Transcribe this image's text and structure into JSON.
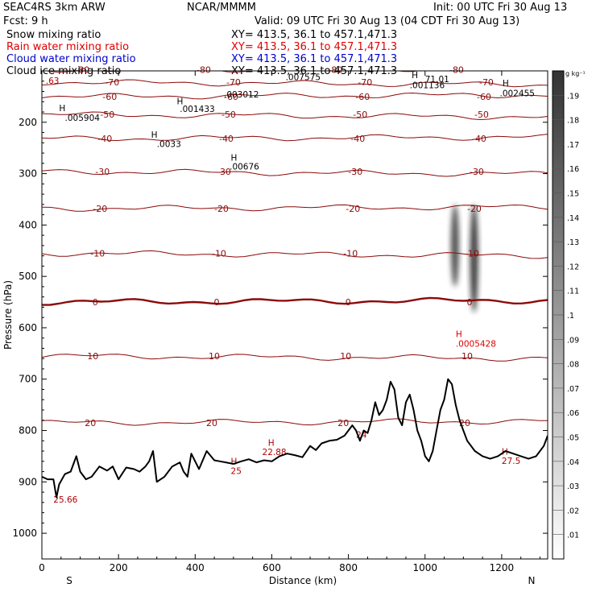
{
  "header": {
    "model": "SEAC4RS  3km ARW",
    "org": "NCAR/MMMM",
    "init": "Init: 00 UTC Fri 30 Aug 13",
    "fcst": "Fcst:    9 h",
    "valid": "Valid: 09 UTC Fri 30 Aug 13 (04 CDT Fri 30 Aug 13)"
  },
  "fields": [
    {
      "name": "Snow mixing ratio",
      "xy": "XY= 413.5, 36.1 to 457.1,471.3",
      "color": "#000000"
    },
    {
      "name": "Rain water mixing ratio",
      "xy": "XY= 413.5, 36.1 to 457.1,471.3",
      "color": "#e00000"
    },
    {
      "name": "Cloud water mixing ratio",
      "xy": "XY= 413.5, 36.1 to 457.1,471.3",
      "color": "#0000cc"
    },
    {
      "name": "Cloud ice mixing ratio",
      "xy": "XY= 413.5, 36.1 to 457.1,471.3",
      "color": "#000000"
    }
  ],
  "chart_data": {
    "type": "heatmap",
    "xlabel": "Distance (km)",
    "ylabel": "Pressure (hPa)",
    "xlim": [
      0,
      1320
    ],
    "ylim": [
      1050,
      100
    ],
    "x_ticks": [
      0,
      200,
      400,
      600,
      800,
      1000,
      1200
    ],
    "y_ticks": [
      200,
      300,
      400,
      500,
      600,
      700,
      800,
      900,
      1000
    ],
    "end_labels": {
      "left": "S",
      "right": "N"
    },
    "colorbar": {
      "unit": "g kg⁻¹",
      "ticks": [
        ".01",
        ".02",
        ".03",
        ".04",
        ".05",
        ".06",
        ".07",
        ".08",
        ".09",
        ".1",
        ".11",
        ".12",
        ".13",
        ".14",
        ".15",
        ".16",
        ".17",
        ".18",
        ".19"
      ]
    },
    "temperature_isotherms": [
      {
        "label": "-80",
        "p": 98
      },
      {
        "label": "-70",
        "p": 122
      },
      {
        "label": "-60",
        "p": 150
      },
      {
        "label": "-50",
        "p": 185
      },
      {
        "label": "-40",
        "p": 232
      },
      {
        "label": "-30",
        "p": 296
      },
      {
        "label": "-20",
        "p": 368
      },
      {
        "label": "-10",
        "p": 455
      },
      {
        "label": "0",
        "p": 550
      },
      {
        "label": "10",
        "p": 655
      },
      {
        "label": "20",
        "p": 785
      }
    ],
    "extrema_labels": [
      {
        "label": ".63",
        "x": 10,
        "p": 125,
        "color": "#b00000"
      },
      {
        "label": "H",
        "x": 45,
        "p": 178,
        "color": "#000000"
      },
      {
        "label": ".005904",
        "x": 60,
        "p": 197,
        "color": "#000000"
      },
      {
        "label": "H",
        "x": 285,
        "p": 230,
        "color": "#000000"
      },
      {
        "label": ".0033",
        "x": 300,
        "p": 248,
        "color": "#000000"
      },
      {
        "label": "H",
        "x": 352,
        "p": 165,
        "color": "#000000"
      },
      {
        "label": ".001433",
        "x": 360,
        "p": 180,
        "color": "#000000"
      },
      {
        "label": ".003012",
        "x": 475,
        "p": 152,
        "color": "#000000"
      },
      {
        "label": "H",
        "x": 493,
        "p": 275,
        "color": "#000000"
      },
      {
        "label": ".00676",
        "x": 490,
        "p": 292,
        "color": "#000000"
      },
      {
        "label": ".007575",
        "x": 636,
        "p": 118,
        "color": "#000000"
      },
      {
        "label": "H",
        "x": 965,
        "p": 114,
        "color": "#000000"
      },
      {
        "label": ".001136",
        "x": 960,
        "p": 134,
        "color": "#000000"
      },
      {
        "label": "71.01",
        "x": 1000,
        "p": 122,
        "color": "#000000"
      },
      {
        "label": "H",
        "x": 1202,
        "p": 130,
        "color": "#000000"
      },
      {
        "label": ".002455",
        "x": 1195,
        "p": 149,
        "color": "#000000"
      },
      {
        "label": "H",
        "x": 1080,
        "p": 618,
        "color": "#e00000"
      },
      {
        "label": ".0005428",
        "x": 1080,
        "p": 637,
        "color": "#e00000"
      },
      {
        "label": "H",
        "x": 590,
        "p": 830,
        "color": "#b00000"
      },
      {
        "label": "22.88",
        "x": 575,
        "p": 848,
        "color": "#b00000"
      },
      {
        "label": "H",
        "x": 493,
        "p": 866,
        "color": "#b00000"
      },
      {
        "label": "25",
        "x": 493,
        "p": 885,
        "color": "#b00000"
      },
      {
        "label": "24",
        "x": 820,
        "p": 814,
        "color": "#b00000"
      },
      {
        "label": "H",
        "x": 1200,
        "p": 847,
        "color": "#b00000"
      },
      {
        "label": "27.5",
        "x": 1200,
        "p": 865,
        "color": "#b00000"
      },
      {
        "label": "25.66",
        "x": 30,
        "p": 940,
        "color": "#b00000"
      }
    ],
    "terrain": {
      "x": [
        0,
        15,
        30,
        38,
        45,
        60,
        75,
        90,
        100,
        115,
        130,
        150,
        170,
        185,
        200,
        220,
        240,
        255,
        270,
        280,
        290,
        300,
        320,
        340,
        360,
        370,
        380,
        390,
        410,
        430,
        450,
        465,
        480,
        500,
        520,
        540,
        560,
        580,
        600,
        620,
        640,
        660,
        680,
        700,
        715,
        730,
        750,
        770,
        790,
        800,
        810,
        820,
        830,
        840,
        850,
        860,
        870,
        880,
        890,
        900,
        910,
        920,
        930,
        940,
        950,
        960,
        970,
        980,
        990,
        1000,
        1010,
        1020,
        1030,
        1040,
        1050,
        1060,
        1070,
        1080,
        1090,
        1100,
        1110,
        1130,
        1150,
        1170,
        1190,
        1210,
        1230,
        1250,
        1270,
        1290,
        1310,
        1320
      ],
      "p": [
        890,
        895,
        895,
        930,
        905,
        885,
        880,
        850,
        880,
        895,
        890,
        870,
        878,
        870,
        895,
        872,
        875,
        880,
        870,
        860,
        840,
        900,
        890,
        870,
        862,
        880,
        890,
        845,
        875,
        840,
        858,
        860,
        862,
        865,
        860,
        856,
        862,
        858,
        860,
        850,
        845,
        848,
        852,
        830,
        838,
        825,
        820,
        818,
        810,
        800,
        790,
        800,
        820,
        800,
        805,
        780,
        745,
        770,
        760,
        740,
        705,
        720,
        775,
        790,
        745,
        730,
        760,
        800,
        820,
        850,
        860,
        840,
        800,
        760,
        740,
        700,
        710,
        750,
        780,
        800,
        820,
        840,
        850,
        855,
        850,
        840,
        845,
        850,
        855,
        850,
        830,
        810
      ]
    },
    "cloud_ice_columns": [
      {
        "x": 1078,
        "p_top": 360,
        "p_bottom": 520,
        "max": 0.16
      },
      {
        "x": 1128,
        "p_top": 360,
        "p_bottom": 570,
        "max": 0.18
      }
    ]
  }
}
